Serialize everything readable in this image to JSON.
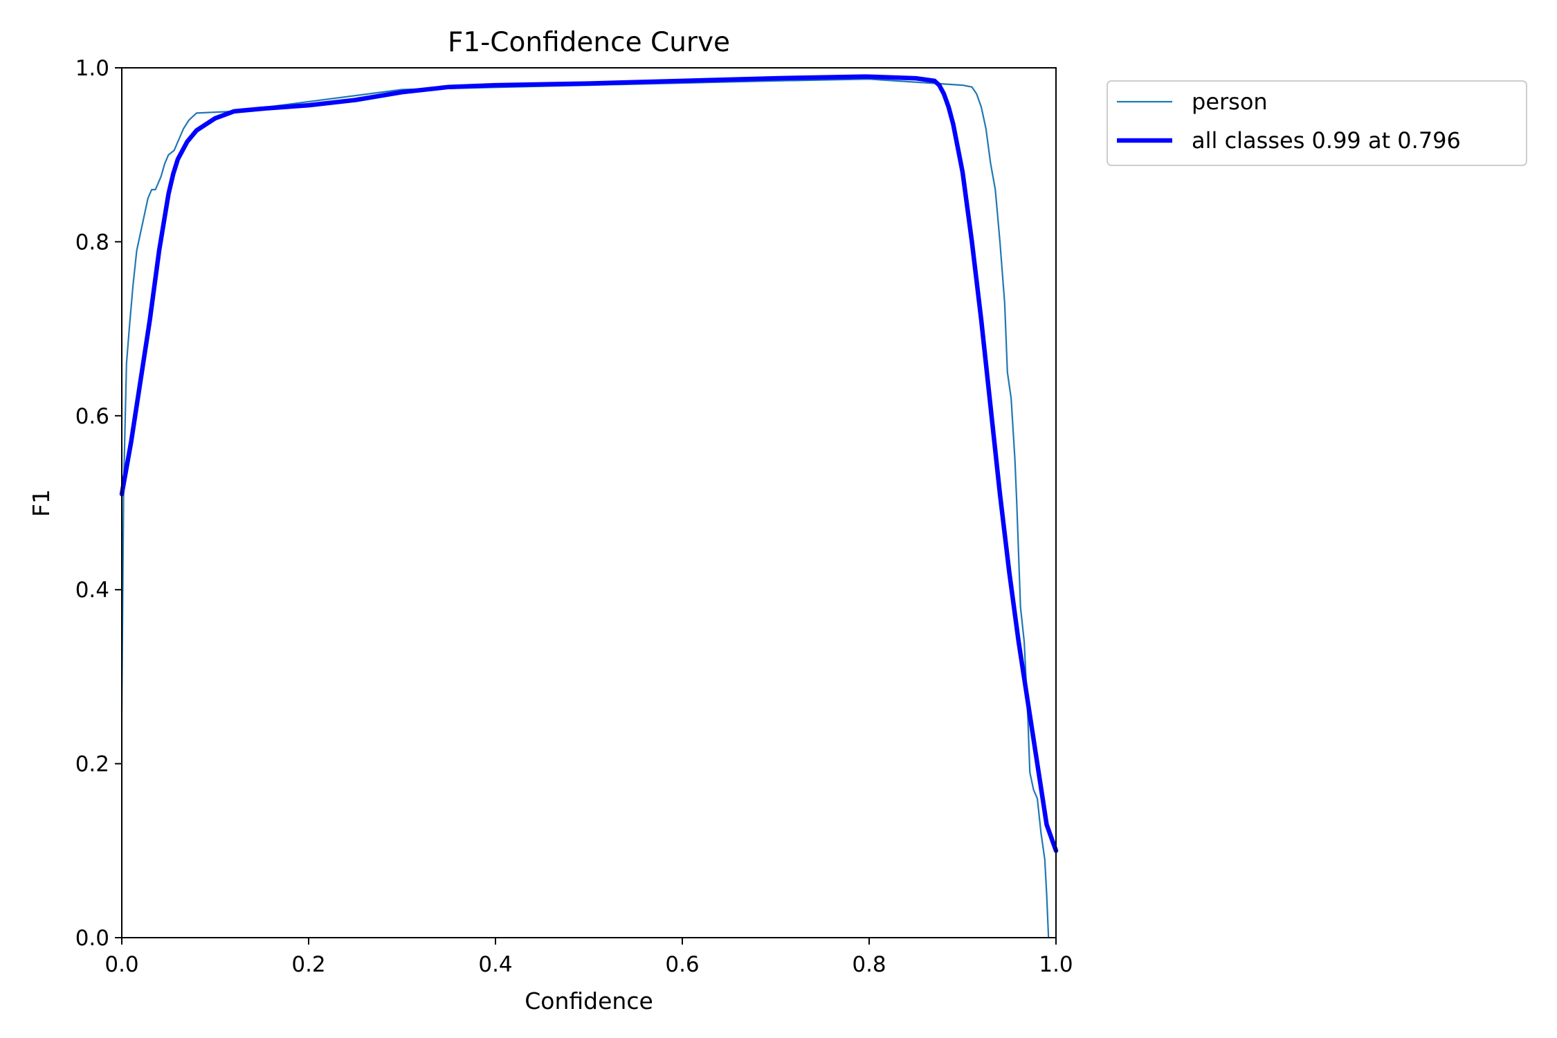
{
  "chart_data": {
    "type": "line",
    "title": "F1-Confidence Curve",
    "xlabel": "Confidence",
    "ylabel": "F1",
    "xlim": [
      0,
      1
    ],
    "ylim": [
      0,
      1
    ],
    "xticks": [
      "0.0",
      "0.2",
      "0.4",
      "0.6",
      "0.8",
      "1.0"
    ],
    "yticks": [
      "0.0",
      "0.2",
      "0.4",
      "0.6",
      "0.8",
      "1.0"
    ],
    "grid": false,
    "legend_position": "outside-top-right",
    "series": [
      {
        "name": "person",
        "color": "#1f77b4",
        "style": "thin",
        "x": [
          0.0,
          0.002,
          0.005,
          0.008,
          0.012,
          0.016,
          0.02,
          0.024,
          0.028,
          0.032,
          0.036,
          0.042,
          0.046,
          0.05,
          0.056,
          0.062,
          0.066,
          0.072,
          0.08,
          0.12,
          0.3,
          0.5,
          0.7,
          0.8,
          0.9,
          0.91,
          0.915,
          0.92,
          0.925,
          0.93,
          0.935,
          0.94,
          0.945,
          0.948,
          0.952,
          0.956,
          0.958,
          0.962,
          0.966,
          0.97,
          0.972,
          0.976,
          0.98,
          0.984,
          0.988,
          0.99,
          0.992
        ],
        "y": [
          0.26,
          0.52,
          0.66,
          0.7,
          0.75,
          0.79,
          0.81,
          0.83,
          0.85,
          0.86,
          0.86,
          0.875,
          0.89,
          0.9,
          0.905,
          0.92,
          0.93,
          0.94,
          0.948,
          0.95,
          0.975,
          0.98,
          0.985,
          0.987,
          0.98,
          0.978,
          0.97,
          0.955,
          0.93,
          0.89,
          0.86,
          0.8,
          0.73,
          0.65,
          0.62,
          0.55,
          0.5,
          0.38,
          0.34,
          0.25,
          0.19,
          0.17,
          0.16,
          0.12,
          0.09,
          0.05,
          0.0
        ]
      },
      {
        "name": "all classes 0.99 at 0.796",
        "color": "#0000ff",
        "style": "thick",
        "x": [
          0.0,
          0.01,
          0.02,
          0.03,
          0.04,
          0.05,
          0.055,
          0.06,
          0.07,
          0.08,
          0.1,
          0.12,
          0.15,
          0.2,
          0.25,
          0.3,
          0.35,
          0.4,
          0.5,
          0.6,
          0.7,
          0.796,
          0.85,
          0.87,
          0.875,
          0.88,
          0.885,
          0.89,
          0.9,
          0.91,
          0.92,
          0.93,
          0.94,
          0.95,
          0.96,
          0.97,
          0.98,
          0.99,
          1.0
        ],
        "y": [
          0.51,
          0.57,
          0.64,
          0.71,
          0.79,
          0.855,
          0.878,
          0.895,
          0.915,
          0.928,
          0.942,
          0.95,
          0.953,
          0.957,
          0.963,
          0.972,
          0.978,
          0.98,
          0.982,
          0.985,
          0.988,
          0.99,
          0.988,
          0.985,
          0.98,
          0.97,
          0.955,
          0.935,
          0.88,
          0.8,
          0.71,
          0.61,
          0.51,
          0.42,
          0.34,
          0.27,
          0.2,
          0.13,
          0.1
        ]
      }
    ]
  }
}
